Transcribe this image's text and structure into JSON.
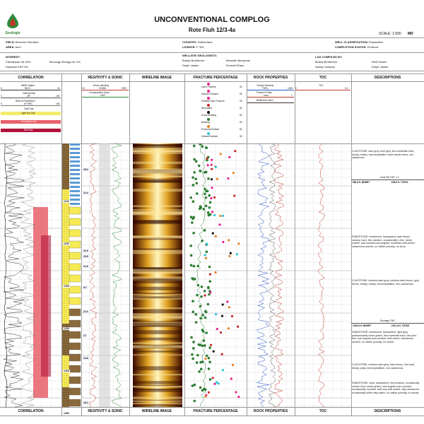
{
  "title": "UNCONVENTIONAL COMPLOG",
  "subtitle": "Rote Fluh 12/3-4a",
  "logo_text": "Geologix",
  "scale": {
    "label": "SCALE: 1:500",
    "unit": "MD"
  },
  "header": {
    "field": {
      "label": "FIELD:",
      "value": "Bernese Oberland"
    },
    "area": {
      "label": "AREA:",
      "value": "bern"
    },
    "country": {
      "label": "COUNTRY:",
      "value": "Switzerland"
    },
    "licence": {
      "label": "LICENCE:",
      "value": "P 324"
    },
    "well_class": {
      "label": "WELL CLASSIFICATION:",
      "value": "Exploration"
    },
    "completion": {
      "label": "COMPLETION STATUS:",
      "value": "Producer"
    },
    "interest_label": "INTEREST:",
    "interests": [
      "Fairodbean Oil 40%",
      "Mcnough Energy UK 2%",
      "Hasswell E&P 3%"
    ],
    "wellsite_label": "WELLSITE GEOLOGISTS:",
    "wellsite": [
      "Buddy Brotherton",
      "Meredith Berryman",
      "Dolph Janker",
      "Emmett Shaw"
    ],
    "log_compiled_label": "LOG COMPILED BY:",
    "log_compiled": [
      "Buddy Brotherton",
      "Wolf Scholz",
      "Sandy Carlsson",
      "Dolph Janker"
    ]
  },
  "columns": [
    "CORRELATION",
    "RESITIVITY & SONIC",
    "WIRELINE IMAGE",
    "FRACTURE PERCENTAGE",
    "ROCK PROPERTIES",
    "TOC",
    "DESCRIPTIONS"
  ],
  "correlation_legend": [
    {
      "name": "MWD Caliper",
      "unit": "INCH",
      "min": "6",
      "max": "16"
    },
    {
      "name": "Gamma Ray",
      "unit": "API",
      "min": "0",
      "max": "150"
    },
    {
      "name": "Rate of Penetration",
      "unit": "(FT/HR)",
      "min": "0",
      "max": "100"
    },
    {
      "name": "Total Gas",
      "unit": "",
      "min": "",
      "max": ""
    },
    {
      "name": "Light Dry Gas",
      "unit": "",
      "min": "",
      "max": ""
    },
    {
      "name": "Productive Gas",
      "unit": "",
      "min": "",
      "max": ""
    },
    {
      "name": "Wet Gas",
      "unit": "",
      "min": "",
      "max": ""
    }
  ],
  "resistivity_legend": [
    {
      "name": "Deep Laterolog",
      "unit": "OHMM",
      "min": "0.2",
      "max": "2000"
    },
    {
      "name": "Compensated Sonic",
      "unit": "US/F",
      "min": "",
      "max": ""
    }
  ],
  "fracture_legend": [
    {
      "name": "Open Fracture",
      "pct": "50"
    },
    {
      "name": "Induced Fracture",
      "pct": "50"
    },
    {
      "name": "Partially Open Fracture",
      "pct": "50"
    },
    {
      "name": "Brecciated",
      "pct": "50"
    },
    {
      "name": "Cross Bedding",
      "pct": "50"
    },
    {
      "name": "Bedding",
      "pct": "50"
    },
    {
      "name": "Erosional Surface",
      "pct": "50"
    },
    {
      "name": "Vertical Fracture",
      "pct": "50"
    }
  ],
  "rock_legend": [
    {
      "name": "Young's Modulus",
      "unit": "TSPa",
      "max": "1000"
    },
    {
      "name": "Poisson's Ratio",
      "unit": "none",
      "max": "1"
    },
    {
      "name": "Brittleness Index",
      "unit": "",
      "max": "100"
    }
  ],
  "toc_legend": {
    "name": "TOC",
    "min": "0",
    "max": "0.4"
  },
  "depth_labels": [
    "1100",
    "1150",
    "1200",
    "1250",
    "1300",
    "1350"
  ],
  "depth_marks": [
    "18.1",
    "11.4",
    "11.6",
    "15.5",
    "11.6",
    "9.7",
    "11.4",
    "17",
    "14.6",
    "16.1"
  ],
  "descriptions": [
    "CLAYSTONE: dark grey, blue grey, firm-moderate hard, blocky, earthy, microcrystalline, trace calcite veins, non calcareous",
    "SANDSTONE: translucent, transparent, pale brown, creamy, hard, fine-medium, occasionally v-fine, rarely coarse, sub-rounded-sub-angular, moderate well-sorted, calcareous cement, no visible porosity, no show",
    "CLAYSTONE: medium-dark grey, medium-dark brown, grey brown, blocky, earthy, microcrystalline, non-calcareous",
    "SANDSTONE: translucent, transparent, light grey, predominantly loose grains, firm-moderate hard, very fine-fine, sub-angular-sub-rounded, well sorted, calcareous cement, no visible porosity, no shows",
    "CLAYSTONE: medium-dark grey, dark brown, firm-hard, blocky, platy, microcrystalline, non calcareous",
    "SANDSTONE: clear, transparent, firm-medium, occasionally coarse-very coarse grains, sub-angular-sub-rounded, occasionally rounded, well-very well sorted, silty calcareous, occasionally white clay matrix, no visible porosity, no shows"
  ],
  "tops": [
    {
      "label": "Goat Fell  TWT: 1.4",
      "md": "980.8 ft. MDBRT",
      "tvd": "-926.8 ft. TVDSS"
    },
    {
      "label": "Stornage  TWT:",
      "md": "1206.8 ft. MDBRT",
      "tvd": "-1161.8 ft. TVDSS"
    }
  ]
}
